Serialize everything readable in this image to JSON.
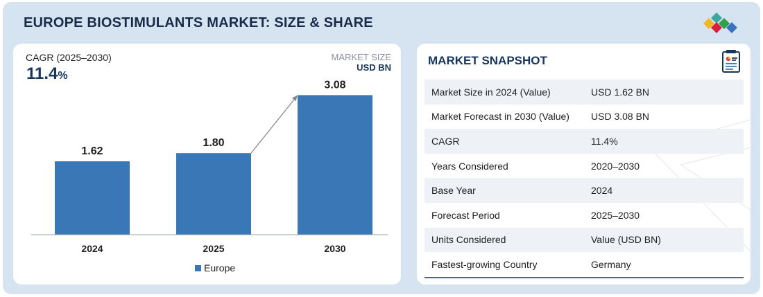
{
  "header": {
    "title": "EUROPE BIOSTIMULANTS MARKET: SIZE & SHARE"
  },
  "kpi": {
    "cagr_label": "CAGR (2025–2030)",
    "cagr_value": "11.4",
    "cagr_unit": "%",
    "market_size_label": "MARKET SIZE",
    "market_size_unit": "USD BN"
  },
  "chart_data": {
    "type": "bar",
    "categories": [
      "2024",
      "2025",
      "2030"
    ],
    "series": [
      {
        "name": "Europe",
        "values": [
          1.62,
          1.8,
          3.08
        ]
      }
    ],
    "data_labels": [
      "1.62",
      "1.80",
      "3.08"
    ],
    "ylim": [
      0,
      3.3
    ],
    "grid": false,
    "legend": "bottom-center",
    "bar_color": "#3a77b7",
    "annotation": "arrow from 2025 bar to 2030 bar"
  },
  "snapshot": {
    "title": "MARKET SNAPSHOT",
    "rows": [
      {
        "key": "Market Size in 2024 (Value)",
        "value": "USD 1.62 BN"
      },
      {
        "key": "Market Forecast in 2030 (Value)",
        "value": "USD 3.08 BN"
      },
      {
        "key": "CAGR",
        "value": "11.4%"
      },
      {
        "key": "Years Considered",
        "value": "2020–2030"
      },
      {
        "key": "Base Year",
        "value": "2024"
      },
      {
        "key": "Forecast Period",
        "value": "2025–2030"
      },
      {
        "key": "Units Considered",
        "value": "Value (USD BN)"
      },
      {
        "key": "Fastest-growing Country",
        "value": "Germany"
      }
    ]
  },
  "colors": {
    "accent": "#16365c",
    "bar": "#3a77b7",
    "frame": "#d6e4f1",
    "row_shade": "#eef1f6"
  },
  "icons": {
    "logo": "colored-diamonds-logo",
    "snapshot": "report-document-icon"
  }
}
